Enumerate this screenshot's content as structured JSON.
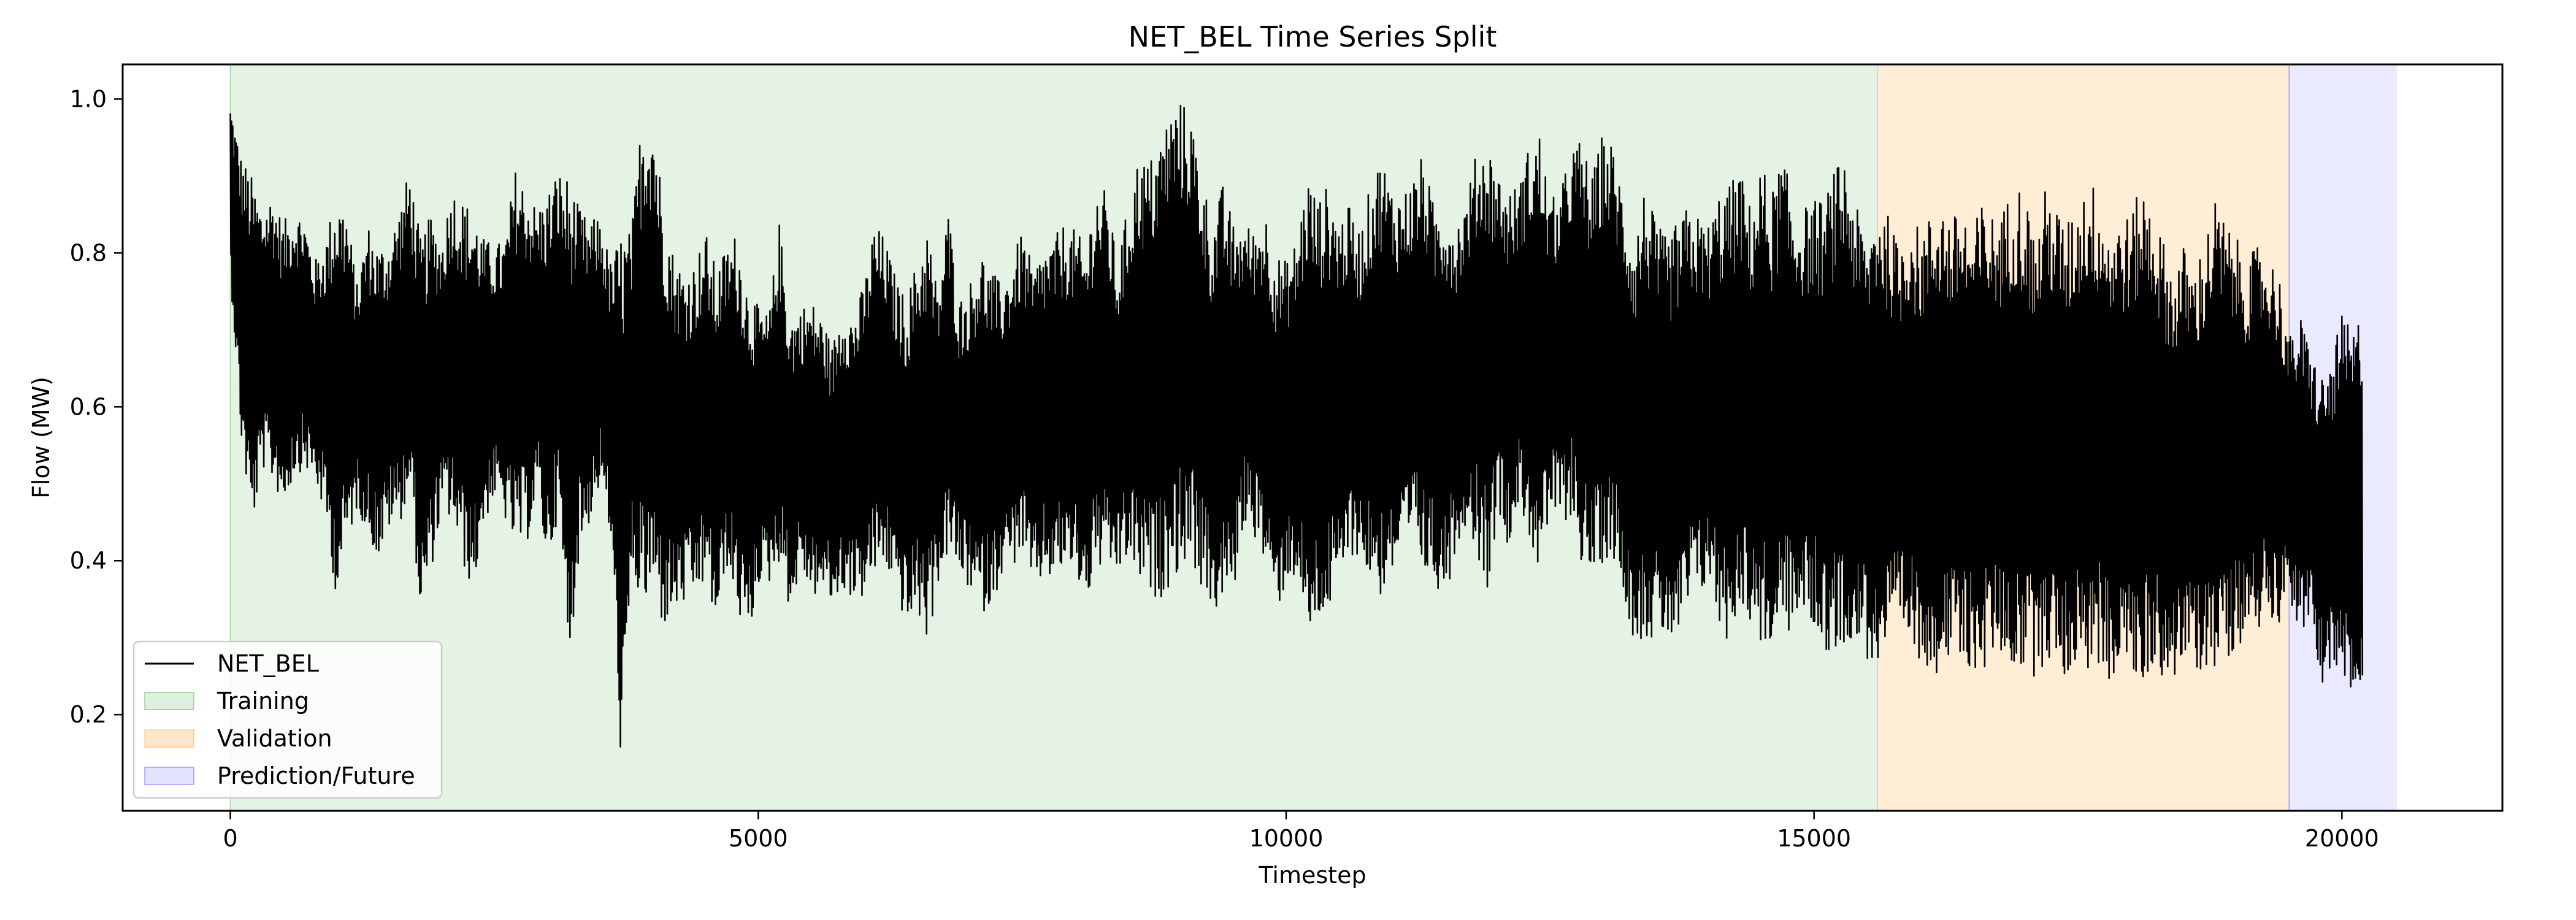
{
  "chart_data": {
    "type": "line",
    "title": "NET_BEL Time Series Split",
    "xlabel": "Timestep",
    "ylabel": "Flow (MW)",
    "xlim": [
      -1020,
      21520
    ],
    "ylim": [
      0.075,
      1.045
    ],
    "xticks": [
      0,
      5000,
      10000,
      15000,
      20000
    ],
    "yticks": [
      0.2,
      0.4,
      0.6,
      0.8,
      1.0
    ],
    "grid": false,
    "legend_position": "lower-left",
    "series": [
      {
        "name": "NET_BEL",
        "color": "#000000",
        "x_start": 0,
        "x_step": 100,
        "samples_per_point": 100,
        "envelope_note_excluded": true,
        "min": [
          0.76,
          0.55,
          0.44,
          0.52,
          0.5,
          0.47,
          0.51,
          0.52,
          0.5,
          0.45,
          0.35,
          0.42,
          0.47,
          0.43,
          0.4,
          0.44,
          0.45,
          0.49,
          0.32,
          0.39,
          0.46,
          0.45,
          0.39,
          0.36,
          0.45,
          0.48,
          0.45,
          0.41,
          0.42,
          0.48,
          0.39,
          0.46,
          0.26,
          0.41,
          0.45,
          0.5,
          0.42,
          0.12,
          0.38,
          0.33,
          0.35,
          0.31,
          0.33,
          0.34,
          0.35,
          0.37,
          0.31,
          0.39,
          0.33,
          0.29,
          0.37,
          0.37,
          0.4,
          0.33,
          0.39,
          0.35,
          0.36,
          0.34,
          0.36,
          0.35,
          0.35,
          0.38,
          0.39,
          0.36,
          0.31,
          0.33,
          0.29,
          0.37,
          0.41,
          0.38,
          0.36,
          0.33,
          0.34,
          0.38,
          0.39,
          0.41,
          0.35,
          0.38,
          0.37,
          0.39,
          0.38,
          0.34,
          0.39,
          0.38,
          0.38,
          0.4,
          0.37,
          0.35,
          0.35,
          0.37,
          0.39,
          0.4,
          0.36,
          0.33,
          0.34,
          0.36,
          0.45,
          0.43,
          0.39,
          0.33,
          0.37,
          0.38,
          0.29,
          0.32,
          0.33,
          0.36,
          0.41,
          0.4,
          0.37,
          0.35,
          0.38,
          0.39,
          0.42,
          0.38,
          0.37,
          0.35,
          0.41,
          0.45,
          0.41,
          0.36,
          0.46,
          0.42,
          0.47,
          0.43,
          0.37,
          0.46,
          0.44,
          0.46,
          0.39,
          0.37,
          0.4,
          0.4,
          0.35,
          0.29,
          0.3,
          0.29,
          0.3,
          0.28,
          0.33,
          0.35,
          0.37,
          0.31,
          0.29,
          0.35,
          0.31,
          0.29,
          0.28,
          0.31,
          0.3,
          0.33,
          0.31,
          0.28,
          0.27,
          0.3,
          0.29,
          0.27,
          0.26,
          0.28,
          0.3,
          0.28,
          0.27,
          0.26,
          0.25,
          0.27,
          0.25,
          0.26,
          0.25,
          0.28,
          0.27,
          0.26,
          0.25,
          0.25,
          0.27,
          0.26,
          0.24,
          0.28,
          0.25,
          0.26,
          0.24,
          0.27,
          0.25,
          0.23,
          0.26,
          0.25,
          0.24,
          0.27,
          0.25,
          0.26,
          0.26,
          0.27,
          0.29,
          0.3,
          0.31,
          0.33,
          0.32,
          0.35,
          0.3,
          0.31,
          0.24,
          0.26,
          0.23,
          0.22,
          0.21,
          0.23,
          0.22,
          0.21,
          0.23
        ],
        "max": [
          1.0,
          0.93,
          0.9,
          0.86,
          0.88,
          0.84,
          0.86,
          0.85,
          0.79,
          0.82,
          0.88,
          0.86,
          0.76,
          0.84,
          0.81,
          0.82,
          0.86,
          0.91,
          0.82,
          0.85,
          0.82,
          0.89,
          0.87,
          0.86,
          0.82,
          0.81,
          0.82,
          0.91,
          0.89,
          0.86,
          0.88,
          0.91,
          0.9,
          0.86,
          0.84,
          0.85,
          0.79,
          0.83,
          0.83,
          0.99,
          1.0,
          0.87,
          0.8,
          0.78,
          0.79,
          0.83,
          0.78,
          0.81,
          0.83,
          0.76,
          0.73,
          0.72,
          0.84,
          0.72,
          0.73,
          0.74,
          0.72,
          0.68,
          0.74,
          0.72,
          0.76,
          0.84,
          0.82,
          0.77,
          0.74,
          0.79,
          0.84,
          0.75,
          0.86,
          0.74,
          0.76,
          0.81,
          0.78,
          0.76,
          0.79,
          0.83,
          0.78,
          0.81,
          0.82,
          0.84,
          0.83,
          0.81,
          0.89,
          0.88,
          0.79,
          0.86,
          0.93,
          0.92,
          0.95,
          0.99,
          1.0,
          0.98,
          0.91,
          0.84,
          0.89,
          0.84,
          0.84,
          0.83,
          0.86,
          0.8,
          0.79,
          0.82,
          0.91,
          0.87,
          0.89,
          0.85,
          0.86,
          0.83,
          0.89,
          0.93,
          0.89,
          0.88,
          0.9,
          0.93,
          0.86,
          0.88,
          0.84,
          0.87,
          0.93,
          0.95,
          0.91,
          0.88,
          0.89,
          0.94,
          0.96,
          0.87,
          0.88,
          0.94,
          0.95,
          0.9,
          0.96,
          0.94,
          0.88,
          0.82,
          0.89,
          0.84,
          0.82,
          0.84,
          0.86,
          0.85,
          0.84,
          0.88,
          0.89,
          0.91,
          0.86,
          0.92,
          0.88,
          0.93,
          0.87,
          0.86,
          0.87,
          0.87,
          0.91,
          0.93,
          0.86,
          0.82,
          0.88,
          0.85,
          0.81,
          0.86,
          0.83,
          0.85,
          0.88,
          0.84,
          0.87,
          0.83,
          0.87,
          0.85,
          0.86,
          0.9,
          0.88,
          0.82,
          0.89,
          0.86,
          0.84,
          0.87,
          0.9,
          0.88,
          0.84,
          0.85,
          0.85,
          0.89,
          0.87,
          0.82,
          0.78,
          0.81,
          0.78,
          0.82,
          0.87,
          0.84,
          0.82,
          0.79,
          0.81,
          0.8,
          0.78,
          0.69,
          0.72,
          0.68,
          0.64,
          0.66,
          0.72,
          0.7,
          0.73
        ]
      }
    ],
    "highlight_peaks_x": [
      4000,
      9150,
      11350,
      12900,
      13850,
      16900
    ],
    "regions": [
      {
        "name": "Training",
        "x_start": 0,
        "x_end": 15600,
        "color": "#2ca02c",
        "alpha": 0.12
      },
      {
        "name": "Validation",
        "x_start": 15600,
        "x_end": 19500,
        "color": "#ff9f1c",
        "alpha": 0.18
      },
      {
        "name": "Prediction/Future",
        "x_start": 19500,
        "x_end": 20520,
        "color": "#3a3aff",
        "alpha": 0.11
      }
    ],
    "legend": [
      "NET_BEL",
      "Training",
      "Validation",
      "Prediction/Future"
    ]
  }
}
